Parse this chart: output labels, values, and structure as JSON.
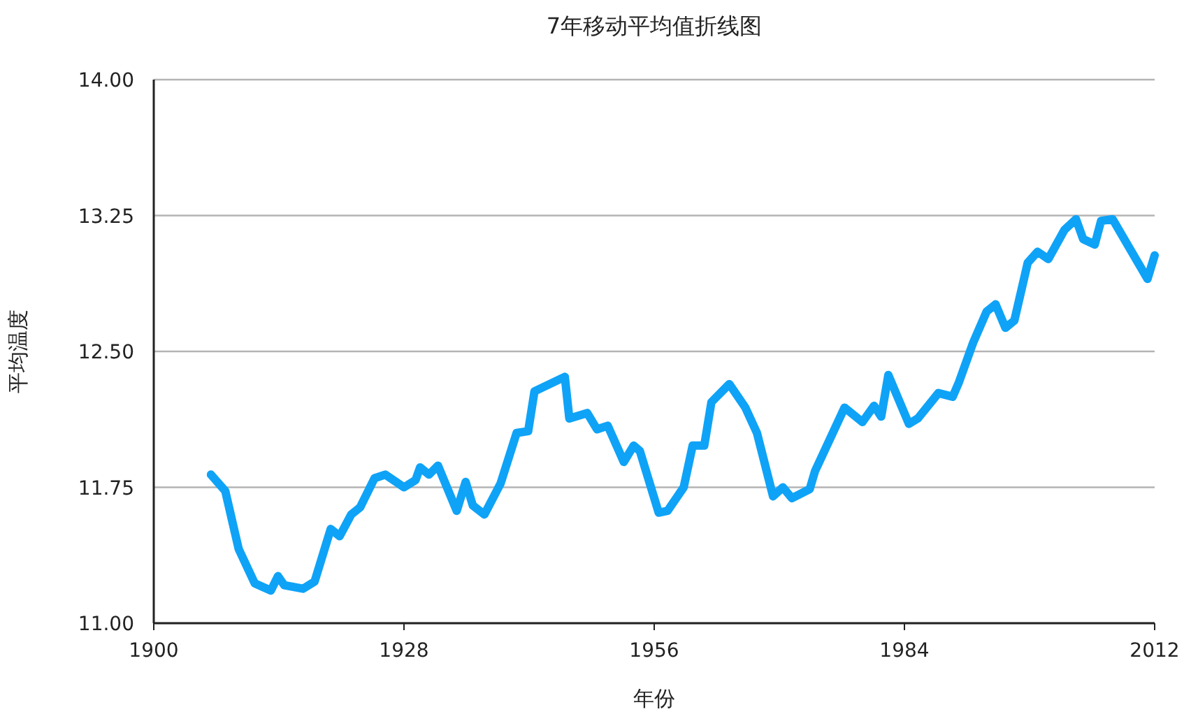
{
  "chart_data": {
    "type": "line",
    "title": "7年移动平均值折线图",
    "xlabel": "年份",
    "ylabel": "平均温度",
    "xlim": [
      1900,
      2012
    ],
    "xticks": [
      1900,
      1928,
      1956,
      1984,
      2012
    ],
    "ylim": [
      11,
      14
    ],
    "yticks": [
      {
        "value": 11,
        "label": "11.00"
      },
      {
        "value": 11.75,
        "label": "11.75"
      },
      {
        "value": 12.5,
        "label": "12.50"
      },
      {
        "value": 13.25,
        "label": "13.25"
      },
      {
        "value": 14,
        "label": "14.00"
      }
    ],
    "grid": "y",
    "series": [
      {
        "color": "#0fa3f7",
        "x": [
          1906.4,
          1908.0,
          1909.5,
          1911.3,
          1913.1,
          1913.9,
          1914.6,
          1916.7,
          1918.0,
          1919.8,
          1920.8,
          1922.1,
          1923.1,
          1924.7,
          1925.9,
          1928.0,
          1929.3,
          1929.8,
          1930.8,
          1931.8,
          1933.9,
          1934.9,
          1935.7,
          1937.0,
          1938.8,
          1940.6,
          1941.9,
          1942.6,
          1946.0,
          1946.5,
          1948.5,
          1949.6,
          1950.8,
          1952.6,
          1953.7,
          1954.4,
          1956.5,
          1957.5,
          1959.3,
          1960.3,
          1961.6,
          1962.4,
          1964.4,
          1966.2,
          1967.5,
          1969.3,
          1970.4,
          1971.4,
          1973.4,
          1974.0,
          1977.3,
          1979.3,
          1980.6,
          1981.4,
          1982.2,
          1984.5,
          1985.5,
          1987.8,
          1989.4,
          1990.1,
          1991.7,
          1993.2,
          1994.2,
          1995.3,
          1996.3,
          1997.8,
          1998.9,
          2000.1,
          2001.9,
          2003.2,
          2004.0,
          2005.3,
          2006.0,
          2007.3,
          2011.2,
          2012.0
        ],
        "values": [
          11.82,
          11.73,
          11.41,
          11.22,
          11.18,
          11.26,
          11.21,
          11.19,
          11.23,
          11.52,
          11.48,
          11.6,
          11.64,
          11.8,
          11.82,
          11.75,
          11.79,
          11.86,
          11.82,
          11.87,
          11.62,
          11.78,
          11.65,
          11.6,
          11.77,
          12.05,
          12.06,
          12.28,
          12.36,
          12.13,
          12.16,
          12.07,
          12.09,
          11.89,
          11.98,
          11.95,
          11.61,
          11.62,
          11.75,
          11.98,
          11.98,
          12.22,
          12.32,
          12.19,
          12.05,
          11.7,
          11.75,
          11.69,
          11.74,
          11.84,
          12.19,
          12.11,
          12.2,
          12.14,
          12.37,
          12.1,
          12.13,
          12.27,
          12.25,
          12.33,
          12.55,
          12.72,
          12.76,
          12.63,
          12.67,
          12.99,
          13.05,
          13.01,
          13.17,
          13.23,
          13.12,
          13.09,
          13.22,
          13.23,
          12.9,
          13.03
        ]
      }
    ]
  }
}
